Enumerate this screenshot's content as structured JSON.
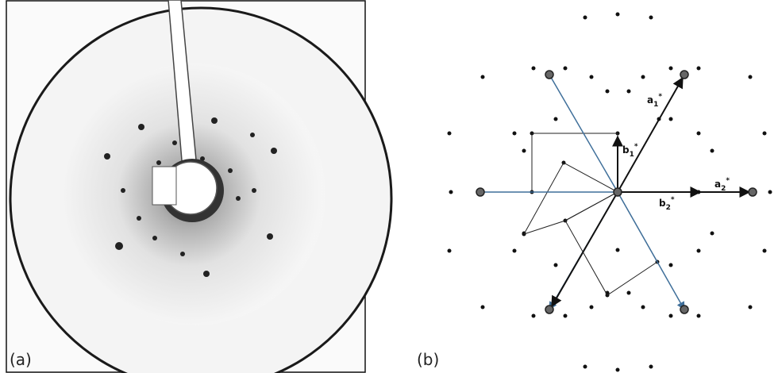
{
  "panels": [
    {
      "label": "(a)"
    },
    {
      "label": "(b)",
      "vectors": [
        {
          "letter": "a",
          "sub": "1",
          "sup": "*"
        },
        {
          "letter": "b",
          "sub": "1",
          "sup": "*"
        },
        {
          "letter": "a",
          "sub": "2",
          "sup": "*"
        },
        {
          "letter": "b",
          "sub": "2",
          "sup": "*"
        }
      ]
    }
  ]
}
